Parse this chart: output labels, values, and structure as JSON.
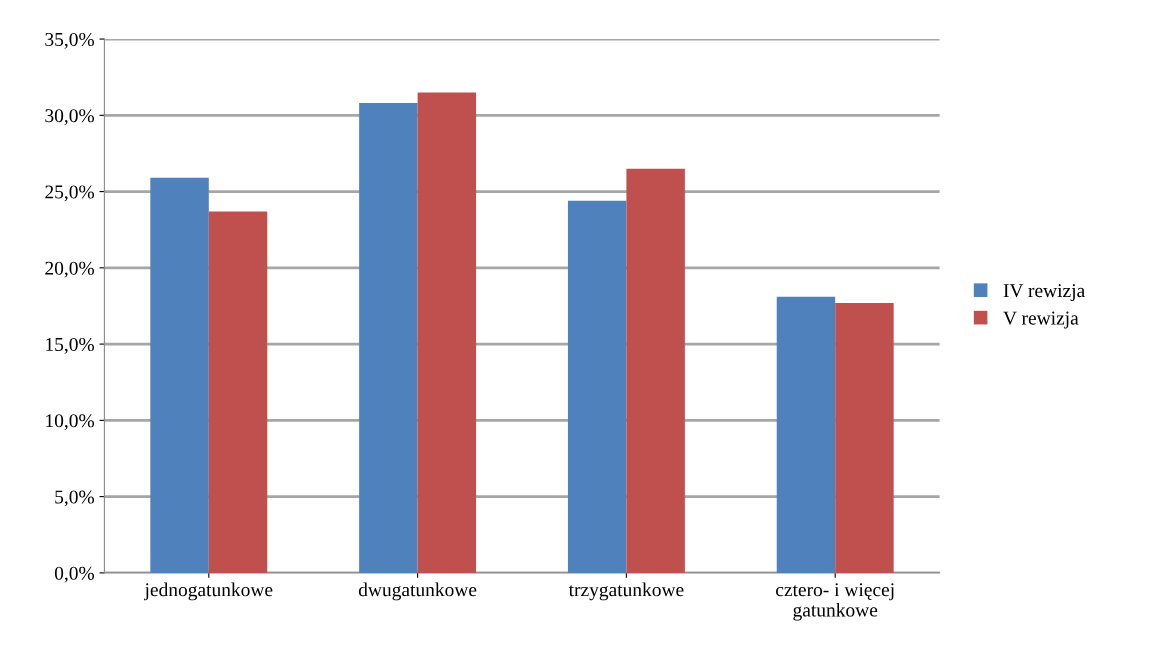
{
  "chart_data": {
    "type": "bar",
    "categories": [
      "jednogatunkowe",
      "dwugatunkowe",
      "trzygatunkowe",
      "cztero- i więcej\ngatunkowe"
    ],
    "series": [
      {
        "name": "IV rewizja",
        "color": "#4f81bd",
        "values": [
          25.9,
          30.8,
          24.4,
          18.1
        ]
      },
      {
        "name": "V rewizja",
        "color": "#c0504d",
        "values": [
          23.7,
          31.5,
          26.5,
          17.7
        ]
      }
    ],
    "ylim": [
      0,
      35
    ],
    "yticks": [
      {
        "value": 0,
        "label": "0,0%"
      },
      {
        "value": 5,
        "label": "5,0%"
      },
      {
        "value": 10,
        "label": "10,0%"
      },
      {
        "value": 15,
        "label": "15,0%"
      },
      {
        "value": 20,
        "label": "20,0%"
      },
      {
        "value": 25,
        "label": "25,0%"
      },
      {
        "value": 30,
        "label": "30,0%"
      },
      {
        "value": 35,
        "label": "35,0%"
      }
    ],
    "grid": "y",
    "legend": "right"
  }
}
